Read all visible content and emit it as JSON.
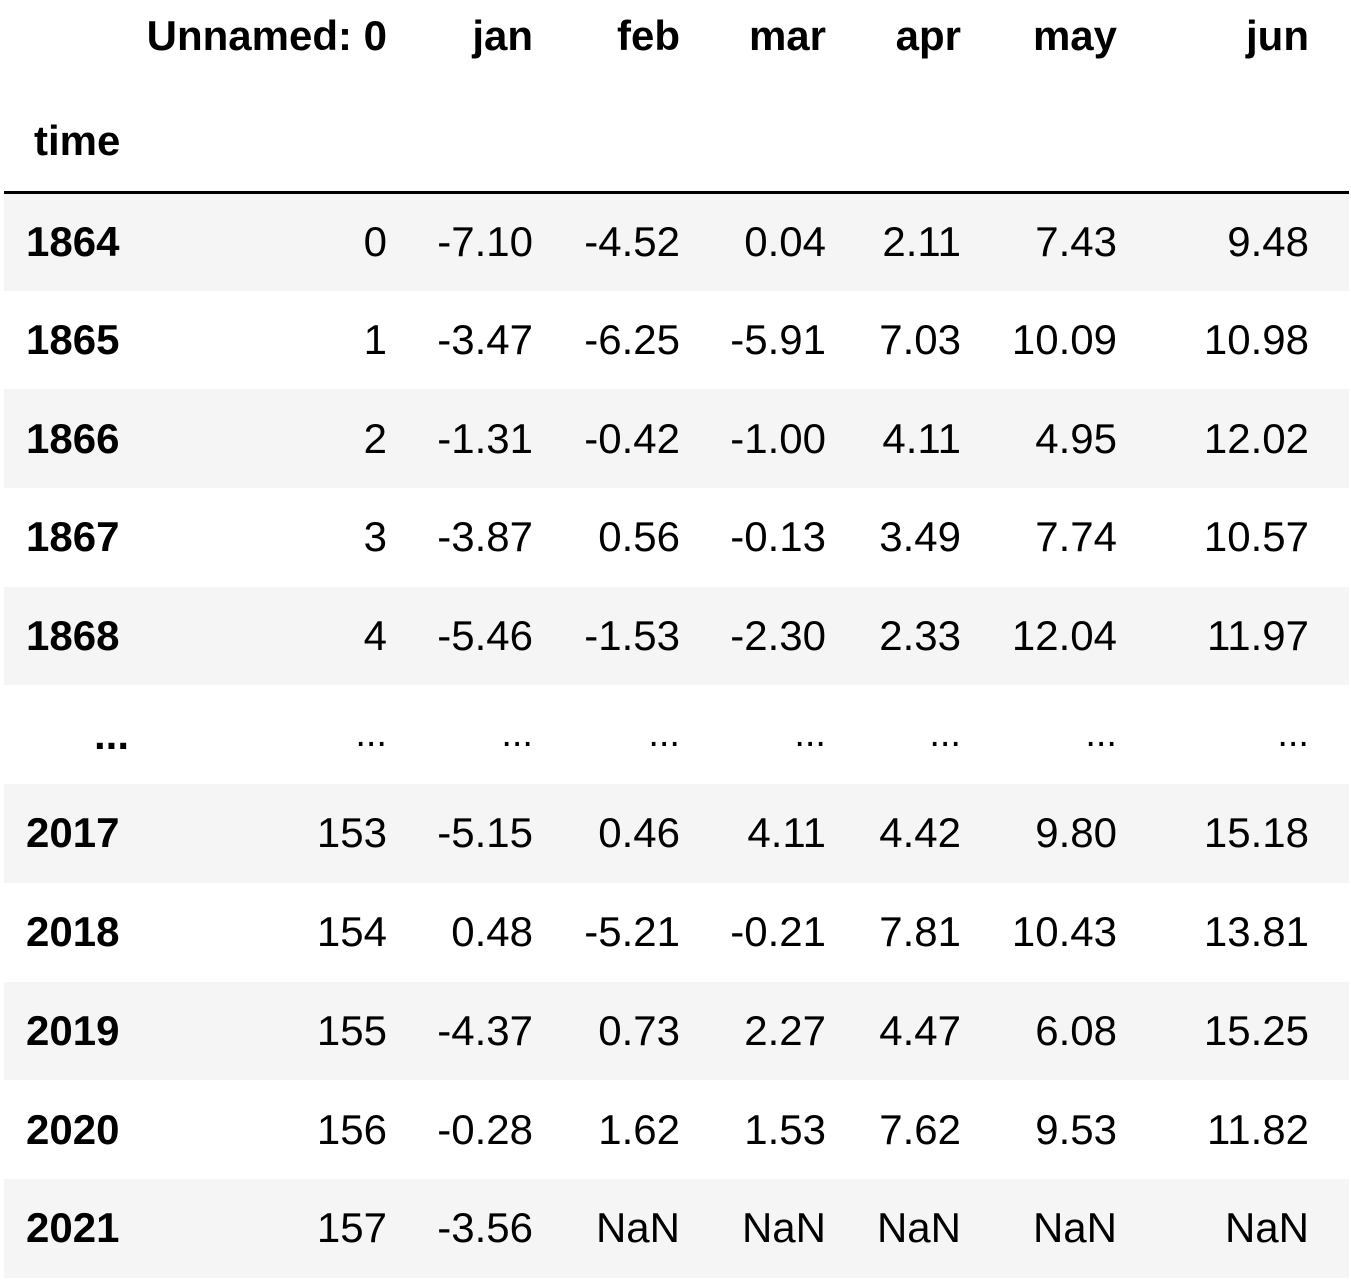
{
  "table": {
    "index_name": "time",
    "columns": [
      "Unnamed: 0",
      "jan",
      "feb",
      "mar",
      "apr",
      "may",
      "jun"
    ],
    "rows": [
      {
        "index": "1864",
        "cells": [
          "0",
          "-7.10",
          "-4.52",
          "0.04",
          "2.11",
          "7.43",
          "9.48"
        ]
      },
      {
        "index": "1865",
        "cells": [
          "1",
          "-3.47",
          "-6.25",
          "-5.91",
          "7.03",
          "10.09",
          "10.98"
        ]
      },
      {
        "index": "1866",
        "cells": [
          "2",
          "-1.31",
          "-0.42",
          "-1.00",
          "4.11",
          "4.95",
          "12.02"
        ]
      },
      {
        "index": "1867",
        "cells": [
          "3",
          "-3.87",
          "0.56",
          "-0.13",
          "3.49",
          "7.74",
          "10.57"
        ]
      },
      {
        "index": "1868",
        "cells": [
          "4",
          "-5.46",
          "-1.53",
          "-2.30",
          "2.33",
          "12.04",
          "11.97"
        ]
      },
      {
        "index": "...",
        "cells": [
          "...",
          "...",
          "...",
          "...",
          "...",
          "...",
          "..."
        ]
      },
      {
        "index": "2017",
        "cells": [
          "153",
          "-5.15",
          "0.46",
          "4.11",
          "4.42",
          "9.80",
          "15.18"
        ]
      },
      {
        "index": "2018",
        "cells": [
          "154",
          "0.48",
          "-5.21",
          "-0.21",
          "7.81",
          "10.43",
          "13.81"
        ]
      },
      {
        "index": "2019",
        "cells": [
          "155",
          "-4.37",
          "0.73",
          "2.27",
          "4.47",
          "6.08",
          "15.25"
        ]
      },
      {
        "index": "2020",
        "cells": [
          "156",
          "-0.28",
          "1.62",
          "1.53",
          "7.62",
          "9.53",
          "11.82"
        ]
      },
      {
        "index": "2021",
        "cells": [
          "157",
          "-3.56",
          "NaN",
          "NaN",
          "NaN",
          "NaN",
          "NaN"
        ]
      }
    ]
  }
}
